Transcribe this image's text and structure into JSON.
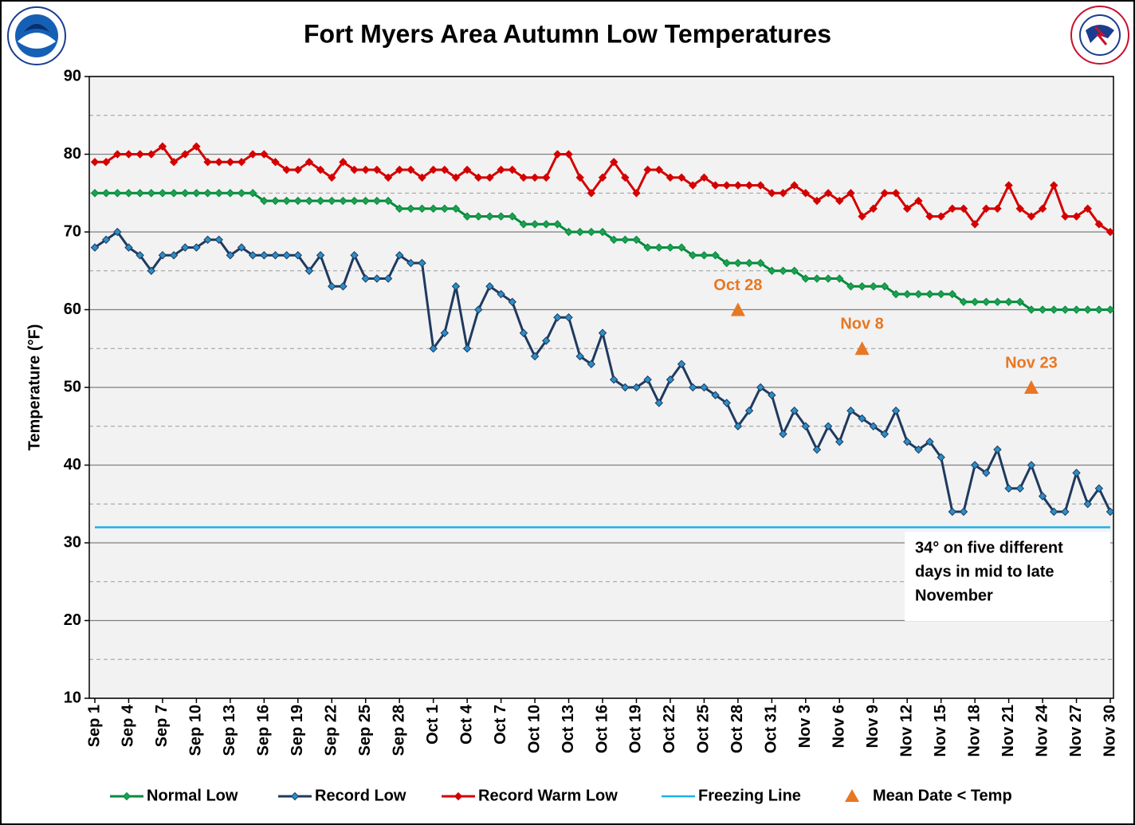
{
  "chart_data": {
    "type": "line",
    "title": "Fort Myers Area Autumn Low Temperatures",
    "y_label": "Temperature (°F)",
    "categories": [
      "Sep 1",
      null,
      null,
      "Sep 4",
      null,
      null,
      "Sep 7",
      null,
      null,
      "Sep 10",
      null,
      null,
      "Sep 13",
      null,
      null,
      "Sep 16",
      null,
      null,
      "Sep 19",
      null,
      null,
      "Sep 22",
      null,
      null,
      "Sep 25",
      null,
      null,
      "Sep 28",
      null,
      null,
      "Oct 1",
      null,
      null,
      "Oct 4",
      null,
      null,
      "Oct 7",
      null,
      null,
      "Oct 10",
      null,
      null,
      "Oct 13",
      null,
      null,
      "Oct 16",
      null,
      null,
      "Oct 19",
      null,
      null,
      "Oct 22",
      null,
      null,
      "Oct 25",
      null,
      null,
      "Oct 28",
      null,
      null,
      "Oct 31",
      null,
      null,
      "Nov 3",
      null,
      null,
      "Nov 6",
      null,
      null,
      "Nov 9",
      null,
      null,
      "Nov 12",
      null,
      null,
      "Nov 15",
      null,
      null,
      "Nov 18",
      null,
      null,
      "Nov 21",
      null,
      null,
      "Nov 24",
      null,
      null,
      "Nov 27",
      null,
      null,
      "Nov 30"
    ],
    "series": [
      {
        "name": "Normal Low",
        "color": "#008a3e",
        "marker": "#1fa04f",
        "values": [
          75,
          75,
          75,
          75,
          75,
          75,
          75,
          75,
          75,
          75,
          75,
          75,
          75,
          75,
          75,
          74,
          74,
          74,
          74,
          74,
          74,
          74,
          74,
          74,
          74,
          74,
          74,
          73,
          73,
          73,
          73,
          73,
          73,
          72,
          72,
          72,
          72,
          72,
          71,
          71,
          71,
          71,
          70,
          70,
          70,
          70,
          69,
          69,
          69,
          68,
          68,
          68,
          68,
          67,
          67,
          67,
          66,
          66,
          66,
          66,
          65,
          65,
          65,
          64,
          64,
          64,
          64,
          63,
          63,
          63,
          63,
          62,
          62,
          62,
          62,
          62,
          62,
          61,
          61,
          61,
          61,
          61,
          61,
          60,
          60,
          60,
          60,
          60,
          60,
          60,
          60
        ]
      },
      {
        "name": "Record Low",
        "color": "#1f3a5f",
        "marker": "#2a8fc8",
        "values": [
          68,
          69,
          70,
          68,
          67,
          65,
          67,
          67,
          68,
          68,
          69,
          69,
          67,
          68,
          67,
          67,
          67,
          67,
          67,
          65,
          67,
          63,
          63,
          67,
          64,
          64,
          64,
          67,
          66,
          66,
          55,
          57,
          63,
          55,
          60,
          63,
          62,
          61,
          57,
          54,
          56,
          59,
          59,
          54,
          53,
          57,
          51,
          50,
          50,
          51,
          48,
          51,
          53,
          50,
          50,
          49,
          48,
          45,
          47,
          50,
          49,
          44,
          47,
          45,
          42,
          45,
          43,
          47,
          46,
          45,
          44,
          47,
          43,
          42,
          43,
          41,
          34,
          34,
          40,
          39,
          42,
          37,
          37,
          40,
          36,
          34,
          34,
          39,
          35,
          37,
          34
        ]
      },
      {
        "name": "Record Warm Low",
        "color": "#d40000",
        "marker": "#d40000",
        "values": [
          79,
          79,
          80,
          80,
          80,
          80,
          81,
          79,
          80,
          81,
          79,
          79,
          79,
          79,
          80,
          80,
          79,
          78,
          78,
          79,
          78,
          77,
          79,
          78,
          78,
          78,
          77,
          78,
          78,
          77,
          78,
          78,
          77,
          78,
          77,
          77,
          78,
          78,
          77,
          77,
          77,
          80,
          80,
          77,
          75,
          77,
          79,
          77,
          75,
          78,
          78,
          77,
          77,
          76,
          77,
          76,
          76,
          76,
          76,
          76,
          75,
          75,
          76,
          75,
          74,
          75,
          74,
          75,
          72,
          73,
          75,
          75,
          73,
          74,
          72,
          72,
          73,
          73,
          71,
          73,
          73,
          76,
          73,
          72,
          73,
          76,
          72,
          72,
          73,
          71,
          70
        ]
      }
    ],
    "freezing_line": {
      "name": "Freezing Line",
      "value": 32,
      "color": "#1fb0e8"
    },
    "mean_dates": {
      "name": "Mean Date < Temp",
      "color": "#e87722",
      "labels": [
        "Oct 28",
        "Nov 8",
        "Nov 23"
      ],
      "values": [
        60,
        55,
        50
      ]
    },
    "annotation": [
      "34° on five different",
      "days in mid to late",
      "November"
    ],
    "ylim": [
      10,
      90
    ],
    "yticks": [
      10,
      20,
      30,
      40,
      50,
      60,
      70,
      80,
      90
    ],
    "yminorticks": [
      15,
      25,
      35,
      45,
      55,
      65,
      75,
      85
    ],
    "grid": true
  }
}
